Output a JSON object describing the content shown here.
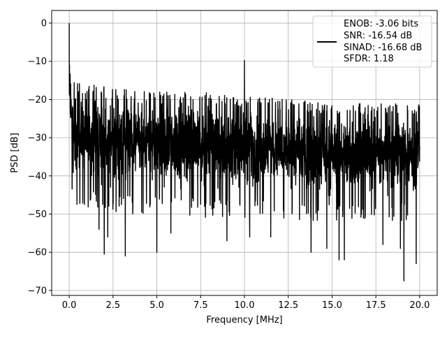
{
  "chart_data": {
    "type": "line",
    "title": "",
    "xlabel": "Frequency [MHz]",
    "ylabel": "PSD [dB]",
    "xlim": [
      -1.0,
      21.0
    ],
    "ylim": [
      -71.3,
      3.3
    ],
    "xticks": [
      0.0,
      2.5,
      5.0,
      7.5,
      10.0,
      12.5,
      15.0,
      17.5,
      20.0
    ],
    "xtick_labels": [
      "0.0",
      "2.5",
      "5.0",
      "7.5",
      "10.0",
      "12.5",
      "15.0",
      "17.5",
      "20.0"
    ],
    "yticks": [
      0,
      -10,
      -20,
      -30,
      -40,
      -50,
      -60,
      -70
    ],
    "ytick_labels": [
      "0",
      "−10",
      "−20",
      "−30",
      "−40",
      "−50",
      "−60",
      "−70"
    ],
    "grid": true,
    "legend_placement": "upper right",
    "legend": [
      "ENOB: -3.06 bits",
      "SNR: -16.54 dB",
      "SINAD: -16.68 dB",
      "SFDR: 1.18"
    ],
    "series": [
      {
        "color": "#000000",
        "x_range": [
          0.0,
          20.0
        ],
        "peaks": [
          {
            "x": 0.0,
            "y": 0.0
          },
          {
            "x": 10.0,
            "y": -9.8
          }
        ],
        "envelope_x": [
          0.0,
          2.5,
          5.0,
          7.5,
          10.0,
          12.5,
          15.0,
          17.5,
          20.0
        ],
        "envelope_upper": [
          -15,
          -17,
          -17,
          -18,
          -19,
          -20,
          -21,
          -21,
          -21
        ],
        "envelope_lower": [
          -42,
          -45,
          -45,
          -46,
          -46,
          -47,
          -47,
          -47,
          -47
        ],
        "median": -30,
        "deep_dips": [
          {
            "x": 1.7,
            "y": -54
          },
          {
            "x": 2.0,
            "y": -60.5
          },
          {
            "x": 2.2,
            "y": -56
          },
          {
            "x": 3.2,
            "y": -61
          },
          {
            "x": 5.0,
            "y": -60
          },
          {
            "x": 5.8,
            "y": -55
          },
          {
            "x": 9.0,
            "y": -57
          },
          {
            "x": 10.3,
            "y": -56
          },
          {
            "x": 11.5,
            "y": -56
          },
          {
            "x": 13.8,
            "y": -60
          },
          {
            "x": 14.7,
            "y": -59
          },
          {
            "x": 15.4,
            "y": -62
          },
          {
            "x": 15.7,
            "y": -62
          },
          {
            "x": 17.9,
            "y": -58
          },
          {
            "x": 18.9,
            "y": -59
          },
          {
            "x": 19.1,
            "y": -67.5
          },
          {
            "x": 19.8,
            "y": -63
          }
        ]
      }
    ]
  }
}
